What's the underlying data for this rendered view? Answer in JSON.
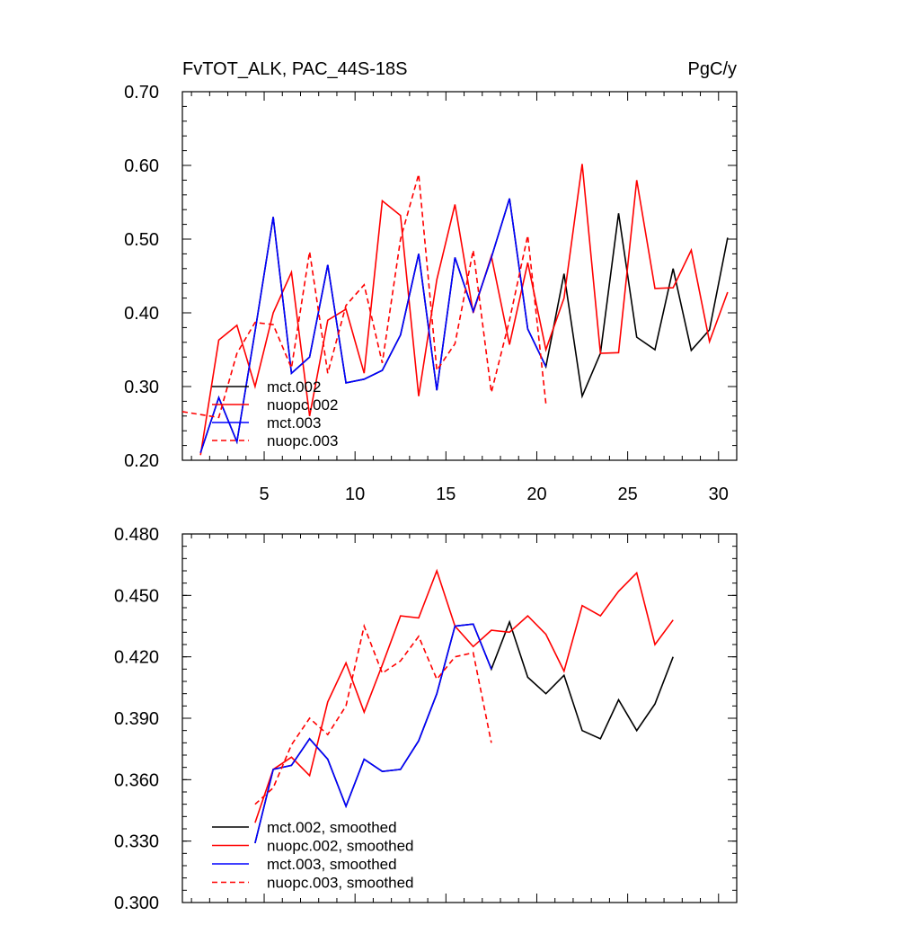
{
  "chart_data": [
    {
      "type": "line",
      "title": "FvTOT_ALK, PAC_44S-18S",
      "units": "PgC/y",
      "xlim": [
        0.5,
        31
      ],
      "ylim": [
        0.2,
        0.7
      ],
      "xticks": [
        5,
        10,
        15,
        20,
        25,
        30
      ],
      "yticks": [
        0.2,
        0.3,
        0.4,
        0.5,
        0.6,
        0.7
      ],
      "ytick_labels": [
        "0.20",
        "0.30",
        "0.40",
        "0.50",
        "0.60",
        "0.70"
      ],
      "legend": [
        "mct.002",
        "nuopc.002",
        "mct.003",
        "nuopc.003"
      ],
      "series": [
        {
          "name": "mct.002",
          "color": "#000000",
          "dash": "",
          "x": [
            1.5,
            2.5,
            3.5,
            4.5,
            5.5,
            6.5,
            7.5,
            8.5,
            9.5,
            10.5,
            11.5,
            12.5,
            13.5,
            14.5,
            15.5,
            16.5,
            17.5,
            18.5,
            19.5,
            20.5,
            21.5,
            22.5,
            23.5,
            24.5,
            25.5,
            26.5,
            27.5,
            28.5,
            29.5,
            30.5
          ],
          "values": [
            0.21,
            0.285,
            0.225,
            0.375,
            0.53,
            0.318,
            0.34,
            0.465,
            0.305,
            0.31,
            0.322,
            0.37,
            0.48,
            0.295,
            0.475,
            0.402,
            0.475,
            0.555,
            0.378,
            0.327,
            0.453,
            0.287,
            0.345,
            0.535,
            0.367,
            0.35,
            0.46,
            0.349,
            0.377,
            0.502
          ]
        },
        {
          "name": "nuopc.002",
          "color": "#ff0000",
          "dash": "",
          "x": [
            1.5,
            2.5,
            3.5,
            4.5,
            5.5,
            6.5,
            7.5,
            8.5,
            9.5,
            10.5,
            11.5,
            12.5,
            13.5,
            14.5,
            15.5,
            16.5,
            17.5,
            18.5,
            19.5,
            20.5,
            21.5,
            22.5,
            23.5,
            24.5,
            25.5,
            26.5,
            27.5,
            28.5,
            29.5,
            30.5
          ],
          "values": [
            0.207,
            0.363,
            0.383,
            0.3,
            0.4,
            0.455,
            0.26,
            0.39,
            0.405,
            0.318,
            0.552,
            0.532,
            0.287,
            0.445,
            0.547,
            0.4,
            0.477,
            0.357,
            0.468,
            0.35,
            0.42,
            0.602,
            0.345,
            0.346,
            0.58,
            0.433,
            0.434,
            0.485,
            0.361,
            0.428
          ]
        },
        {
          "name": "mct.003",
          "color": "#0000ff",
          "dash": "",
          "x": [
            1.5,
            2.5,
            3.5,
            4.5,
            5.5,
            6.5,
            7.5,
            8.5,
            9.5,
            10.5,
            11.5,
            12.5,
            13.5,
            14.5,
            15.5,
            16.5,
            17.5,
            18.5,
            19.5,
            20.5
          ],
          "values": [
            0.21,
            0.285,
            0.225,
            0.375,
            0.53,
            0.318,
            0.34,
            0.465,
            0.305,
            0.31,
            0.322,
            0.37,
            0.48,
            0.295,
            0.475,
            0.402,
            0.475,
            0.555,
            0.378,
            0.327
          ]
        },
        {
          "name": "nuopc.003",
          "color": "#ff0000",
          "dash": "6,4",
          "x": [
            0.5,
            1.5,
            2.5,
            3.5,
            4.5,
            5.5,
            6.5,
            7.5,
            8.5,
            9.5,
            10.5,
            11.5,
            12.5,
            13.5,
            14.5,
            15.5,
            16.5,
            17.5,
            18.5,
            19.5,
            20.5
          ],
          "values": [
            0.266,
            0.262,
            0.258,
            0.345,
            0.387,
            0.384,
            0.325,
            0.483,
            0.318,
            0.41,
            0.438,
            0.332,
            0.5,
            0.588,
            0.322,
            0.358,
            0.485,
            0.292,
            0.39,
            0.505,
            0.277
          ]
        }
      ]
    },
    {
      "type": "line",
      "title": "",
      "xlim": [
        0.5,
        31
      ],
      "ylim": [
        0.3,
        0.48
      ],
      "xticks": [
        5,
        10,
        15,
        20,
        25,
        30
      ],
      "yticks": [
        0.3,
        0.33,
        0.36,
        0.39,
        0.42,
        0.45,
        0.48
      ],
      "ytick_labels": [
        "0.300",
        "0.330",
        "0.360",
        "0.390",
        "0.420",
        "0.450",
        "0.480"
      ],
      "legend": [
        "mct.002, smoothed",
        "nuopc.002, smoothed",
        "mct.003, smoothed",
        "nuopc.003, smoothed"
      ],
      "series": [
        {
          "name": "mct.002, smoothed",
          "color": "#000000",
          "dash": "",
          "x": [
            4.5,
            5.5,
            6.5,
            7.5,
            8.5,
            9.5,
            10.5,
            11.5,
            12.5,
            13.5,
            14.5,
            15.5,
            16.5,
            17.5,
            18.5,
            19.5,
            20.5,
            21.5,
            22.5,
            23.5,
            24.5,
            25.5,
            26.5,
            27.5
          ],
          "values": [
            0.329,
            0.365,
            0.367,
            0.38,
            0.37,
            0.347,
            0.37,
            0.364,
            0.365,
            0.379,
            0.402,
            0.435,
            0.436,
            0.414,
            0.437,
            0.41,
            0.402,
            0.411,
            0.384,
            0.38,
            0.399,
            0.384,
            0.397,
            0.42
          ]
        },
        {
          "name": "nuopc.002, smoothed",
          "color": "#ff0000",
          "dash": "",
          "x": [
            4.5,
            5.5,
            6.5,
            7.5,
            8.5,
            9.5,
            10.5,
            11.5,
            12.5,
            13.5,
            14.5,
            15.5,
            16.5,
            17.5,
            18.5,
            19.5,
            20.5,
            21.5,
            22.5,
            23.5,
            24.5,
            25.5,
            26.5,
            27.5
          ],
          "values": [
            0.339,
            0.365,
            0.371,
            0.362,
            0.398,
            0.417,
            0.393,
            0.416,
            0.44,
            0.439,
            0.462,
            0.435,
            0.425,
            0.433,
            0.432,
            0.44,
            0.431,
            0.413,
            0.445,
            0.44,
            0.452,
            0.461,
            0.426,
            0.438
          ]
        },
        {
          "name": "mct.003, smoothed",
          "color": "#0000ff",
          "dash": "",
          "x": [
            4.5,
            5.5,
            6.5,
            7.5,
            8.5,
            9.5,
            10.5,
            11.5,
            12.5,
            13.5,
            14.5,
            15.5,
            16.5,
            17.5
          ],
          "values": [
            0.329,
            0.365,
            0.367,
            0.38,
            0.37,
            0.347,
            0.37,
            0.364,
            0.365,
            0.379,
            0.402,
            0.435,
            0.436,
            0.414
          ]
        },
        {
          "name": "nuopc.003, smoothed",
          "color": "#ff0000",
          "dash": "6,4",
          "x": [
            4.5,
            5.5,
            6.5,
            7.5,
            8.5,
            9.5,
            10.5,
            11.5,
            12.5,
            13.5,
            14.5,
            15.5,
            16.5,
            17.5
          ],
          "values": [
            0.348,
            0.356,
            0.377,
            0.39,
            0.382,
            0.396,
            0.435,
            0.412,
            0.418,
            0.43,
            0.409,
            0.42,
            0.422,
            0.378
          ]
        }
      ]
    }
  ]
}
